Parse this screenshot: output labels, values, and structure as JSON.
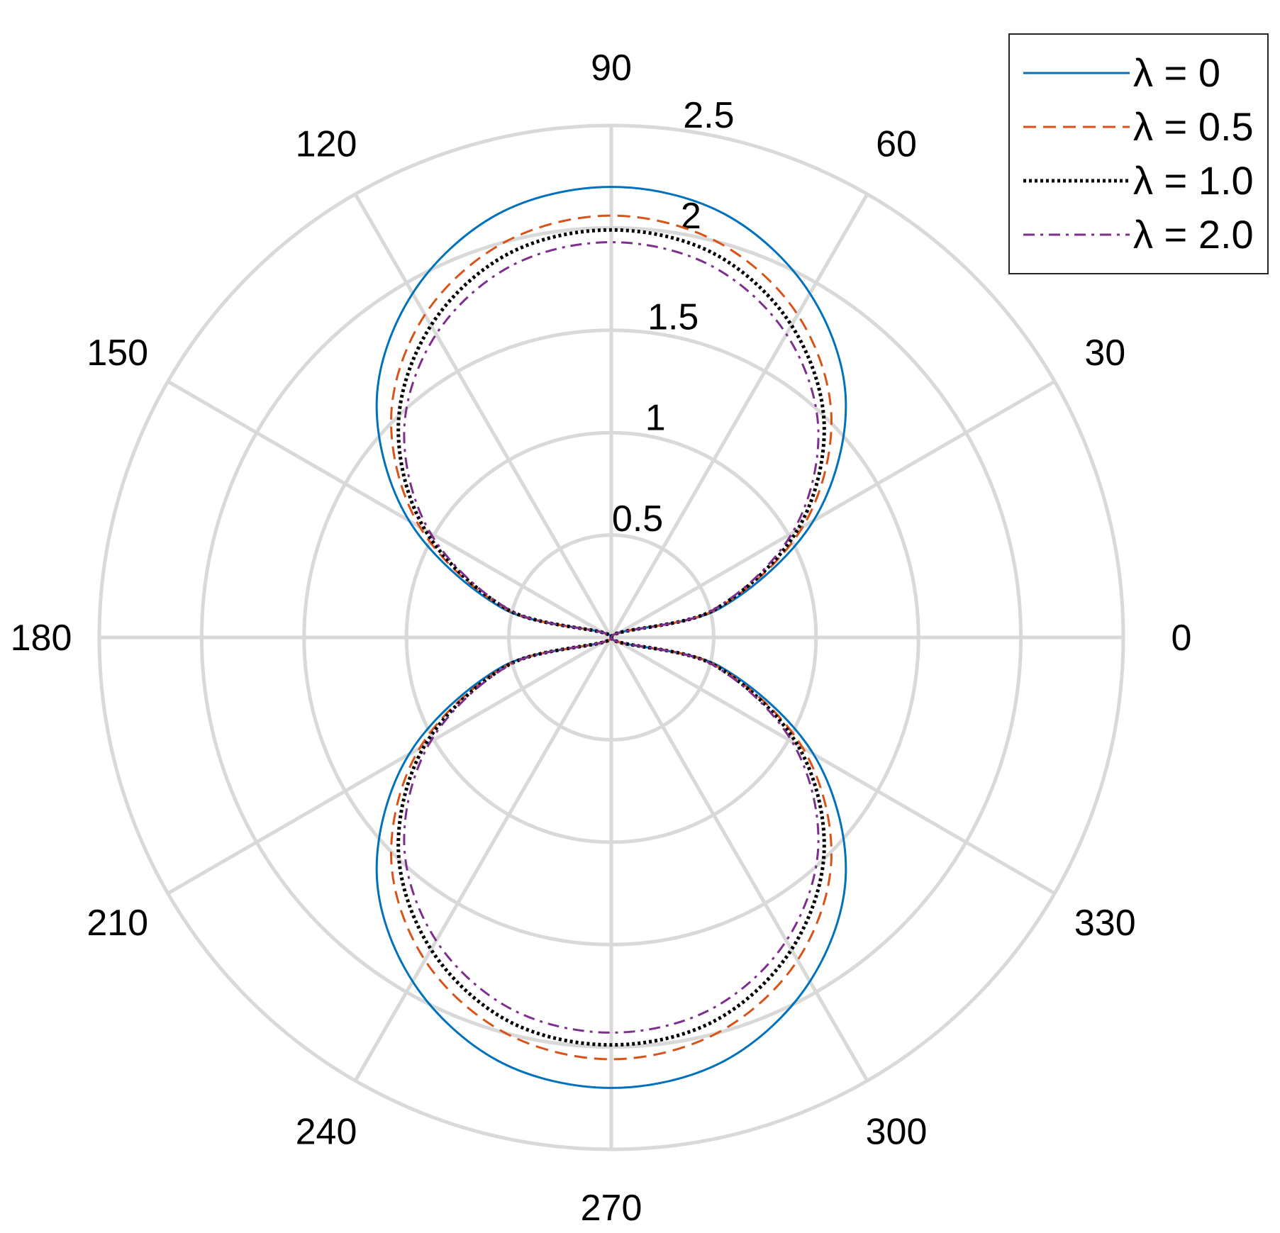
{
  "chart_data": {
    "type": "polar-line",
    "title": "",
    "theta_unit": "degrees",
    "rlim": [
      0,
      2.5
    ],
    "r_ticks": [
      "0.5",
      "1",
      "1.5",
      "2",
      "2.5"
    ],
    "theta_ticks": [
      "0",
      "30",
      "60",
      "90",
      "120",
      "150",
      "180",
      "210",
      "240",
      "270",
      "300",
      "330"
    ],
    "grid": true,
    "legend_position": "top-right",
    "series": [
      {
        "name": "λ = 0",
        "color": "#0072BD",
        "dash": "solid",
        "theta": [
          0,
          15,
          30,
          45,
          60,
          75,
          90,
          105,
          120,
          135,
          150,
          165,
          180,
          195,
          210,
          225,
          240,
          255,
          270,
          285,
          300,
          315,
          330,
          345,
          360
        ],
        "r": [
          0,
          0.55,
          1.14,
          1.62,
          1.94,
          2.14,
          2.2,
          2.14,
          1.94,
          1.62,
          1.14,
          0.55,
          0,
          0.55,
          1.14,
          1.62,
          1.94,
          2.14,
          2.2,
          2.14,
          1.94,
          1.62,
          1.14,
          0.55,
          0
        ]
      },
      {
        "name": "λ = 0.5",
        "color": "#D95319",
        "dash": "dashed",
        "theta": [
          0,
          15,
          30,
          45,
          60,
          75,
          90,
          105,
          120,
          135,
          150,
          165,
          180,
          195,
          210,
          225,
          240,
          255,
          270,
          285,
          300,
          315,
          330,
          345,
          360
        ],
        "r": [
          0,
          0.53,
          1.08,
          1.52,
          1.82,
          2.0,
          2.06,
          2.0,
          1.82,
          1.52,
          1.08,
          0.53,
          0,
          0.53,
          1.08,
          1.52,
          1.82,
          2.0,
          2.06,
          2.0,
          1.82,
          1.52,
          1.08,
          0.53,
          0
        ]
      },
      {
        "name": "λ = 1.0",
        "color": "#000000",
        "dash": "dotted",
        "theta": [
          0,
          15,
          30,
          45,
          60,
          75,
          90,
          105,
          120,
          135,
          150,
          165,
          180,
          195,
          210,
          225,
          240,
          255,
          270,
          285,
          300,
          315,
          330,
          345,
          360
        ],
        "r": [
          0,
          0.52,
          1.05,
          1.47,
          1.76,
          1.94,
          1.99,
          1.94,
          1.76,
          1.47,
          1.05,
          0.52,
          0,
          0.52,
          1.05,
          1.47,
          1.76,
          1.94,
          1.99,
          1.94,
          1.76,
          1.47,
          1.05,
          0.52,
          0
        ]
      },
      {
        "name": "λ = 2.0",
        "color": "#7E2F8E",
        "dash": "dashdot",
        "theta": [
          0,
          15,
          30,
          45,
          60,
          75,
          90,
          105,
          120,
          135,
          150,
          165,
          180,
          195,
          210,
          225,
          240,
          255,
          270,
          285,
          300,
          315,
          330,
          345,
          360
        ],
        "r": [
          0,
          0.51,
          1.02,
          1.43,
          1.71,
          1.88,
          1.93,
          1.88,
          1.71,
          1.43,
          1.02,
          0.51,
          0,
          0.51,
          1.02,
          1.43,
          1.71,
          1.88,
          1.93,
          1.88,
          1.71,
          1.43,
          1.02,
          0.51,
          0
        ]
      }
    ]
  }
}
